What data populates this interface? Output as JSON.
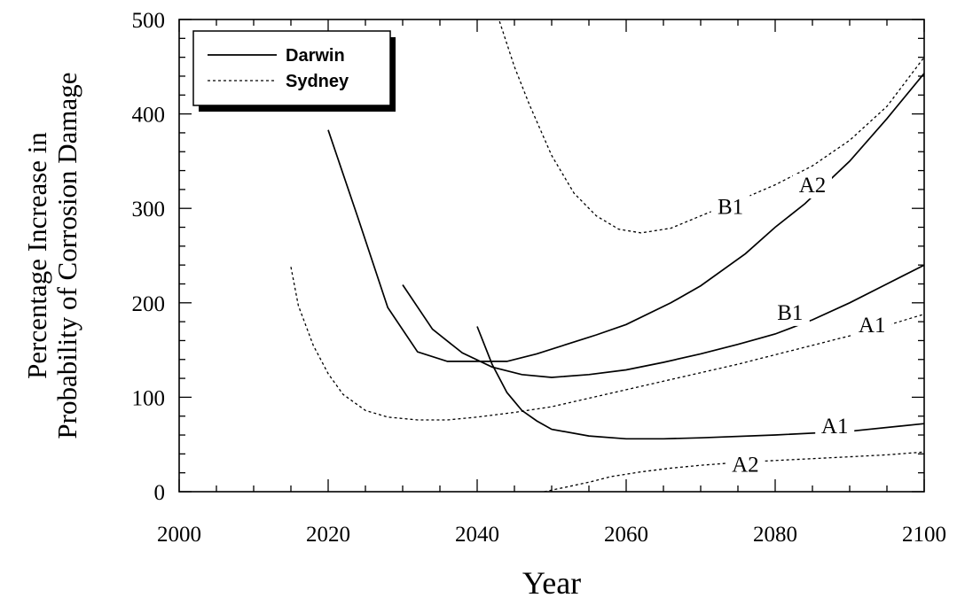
{
  "chart_data": {
    "type": "line",
    "xlabel": "Year",
    "ylabel_lines": [
      "Percentage Increase in",
      "Probability of Corrosion Damage"
    ],
    "xlim": [
      2000,
      2100
    ],
    "ylim": [
      0,
      500
    ],
    "x_ticks": [
      2000,
      2020,
      2040,
      2060,
      2080,
      2100
    ],
    "y_ticks": [
      0,
      100,
      200,
      300,
      400,
      500
    ],
    "grid": false,
    "legend": {
      "placement": "top-left",
      "entries": [
        {
          "name": "Darwin",
          "style": "solid"
        },
        {
          "name": "Sydney",
          "style": "dotted"
        }
      ]
    },
    "series": [
      {
        "name": "Darwin",
        "label": "A2",
        "style": "solid",
        "label_at": [
          2085,
          318
        ],
        "points": [
          [
            2020,
            383
          ],
          [
            2024,
            290
          ],
          [
            2028,
            195
          ],
          [
            2032,
            148
          ],
          [
            2036,
            138
          ],
          [
            2040,
            138
          ],
          [
            2044,
            138
          ],
          [
            2048,
            146
          ],
          [
            2052,
            156
          ],
          [
            2056,
            166
          ],
          [
            2060,
            177
          ],
          [
            2066,
            200
          ],
          [
            2070,
            218
          ],
          [
            2076,
            252
          ],
          [
            2080,
            280
          ],
          [
            2084,
            305
          ],
          [
            2090,
            350
          ],
          [
            2095,
            395
          ],
          [
            2100,
            443
          ]
        ]
      },
      {
        "name": "Darwin",
        "label": "B1",
        "style": "solid",
        "label_at": [
          2082,
          183
        ],
        "points": [
          [
            2030,
            219
          ],
          [
            2034,
            172
          ],
          [
            2038,
            147
          ],
          [
            2042,
            132
          ],
          [
            2046,
            124
          ],
          [
            2050,
            121
          ],
          [
            2055,
            124
          ],
          [
            2060,
            129
          ],
          [
            2065,
            137
          ],
          [
            2070,
            146
          ],
          [
            2075,
            156
          ],
          [
            2080,
            167
          ],
          [
            2085,
            182
          ],
          [
            2090,
            200
          ],
          [
            2095,
            220
          ],
          [
            2100,
            240
          ]
        ]
      },
      {
        "name": "Darwin",
        "label": "A1",
        "style": "solid",
        "label_at": [
          2088,
          63
        ],
        "points": [
          [
            2040,
            175
          ],
          [
            2042,
            135
          ],
          [
            2044,
            105
          ],
          [
            2046,
            86
          ],
          [
            2048,
            75
          ],
          [
            2050,
            66
          ],
          [
            2055,
            59
          ],
          [
            2060,
            56
          ],
          [
            2065,
            56
          ],
          [
            2070,
            57
          ],
          [
            2080,
            60
          ],
          [
            2090,
            64
          ],
          [
            2100,
            72
          ]
        ]
      },
      {
        "name": "Sydney",
        "label": "B1",
        "style": "dotted",
        "label_at": [
          2074,
          295
        ],
        "points": [
          [
            2043,
            498
          ],
          [
            2045,
            450
          ],
          [
            2047,
            410
          ],
          [
            2050,
            356
          ],
          [
            2053,
            316
          ],
          [
            2056,
            292
          ],
          [
            2059,
            278
          ],
          [
            2062,
            274
          ],
          [
            2066,
            279
          ],
          [
            2070,
            292
          ],
          [
            2075,
            308
          ],
          [
            2080,
            325
          ],
          [
            2085,
            345
          ],
          [
            2090,
            372
          ],
          [
            2095,
            408
          ],
          [
            2100,
            460
          ]
        ]
      },
      {
        "name": "Sydney",
        "label": "A1",
        "style": "dotted",
        "label_at": [
          2093,
          170
        ],
        "points": [
          [
            2015,
            238
          ],
          [
            2016,
            197
          ],
          [
            2018,
            155
          ],
          [
            2020,
            125
          ],
          [
            2022,
            103
          ],
          [
            2025,
            86
          ],
          [
            2028,
            79
          ],
          [
            2032,
            76
          ],
          [
            2036,
            76
          ],
          [
            2040,
            79
          ],
          [
            2045,
            84
          ],
          [
            2050,
            90
          ],
          [
            2055,
            99
          ],
          [
            2060,
            108
          ],
          [
            2065,
            117
          ],
          [
            2070,
            126
          ],
          [
            2075,
            135
          ],
          [
            2080,
            145
          ],
          [
            2085,
            155
          ],
          [
            2090,
            165
          ],
          [
            2095,
            176
          ],
          [
            2100,
            188
          ]
        ]
      },
      {
        "name": "Sydney",
        "label": "A2",
        "style": "dotted",
        "label_at": [
          2076,
          22
        ],
        "points": [
          [
            2049,
            0
          ],
          [
            2052,
            5
          ],
          [
            2055,
            10
          ],
          [
            2058,
            16
          ],
          [
            2062,
            21
          ],
          [
            2066,
            25
          ],
          [
            2070,
            28
          ],
          [
            2075,
            31
          ],
          [
            2080,
            33
          ],
          [
            2085,
            35
          ],
          [
            2090,
            37
          ],
          [
            2095,
            39
          ],
          [
            2100,
            42
          ]
        ]
      }
    ]
  }
}
